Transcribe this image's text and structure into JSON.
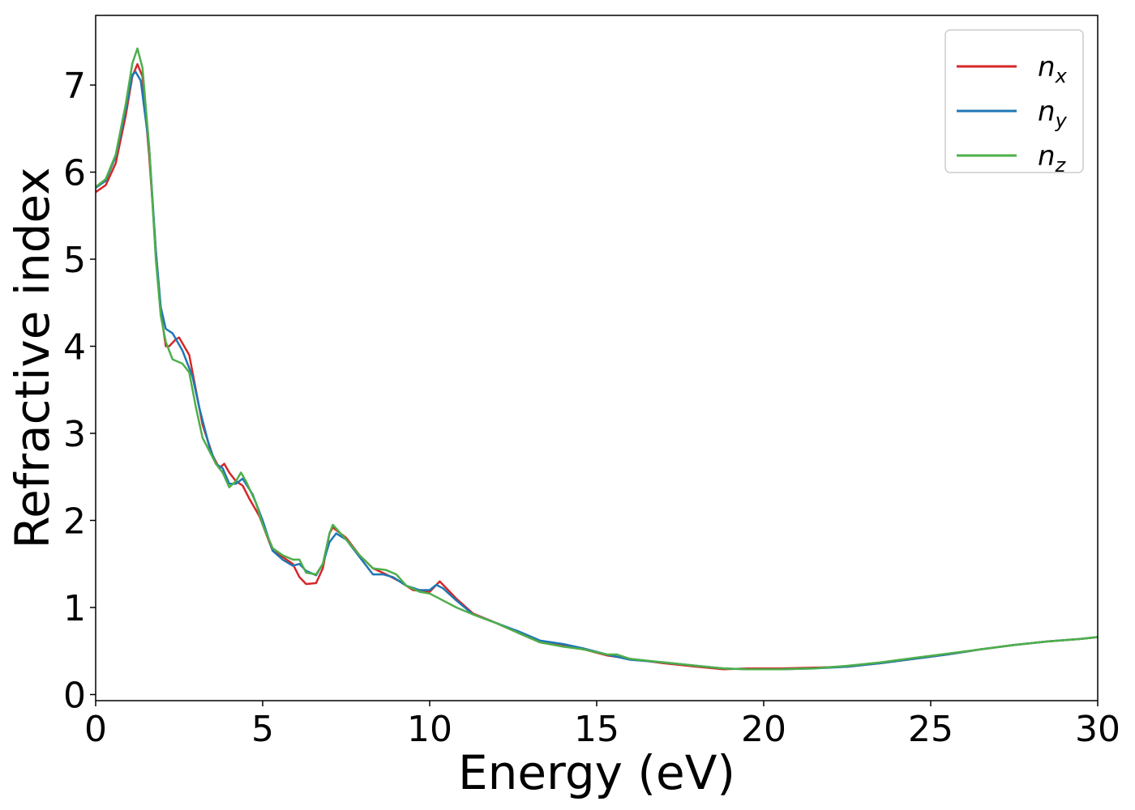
{
  "chart_data": {
    "type": "line",
    "title": "",
    "xlabel": "Energy (eV)",
    "ylabel": "Refractive index",
    "xlim": [
      0,
      30
    ],
    "ylim": [
      -0.07,
      7.8
    ],
    "xticks": [
      0,
      5,
      10,
      15,
      20,
      25,
      30
    ],
    "yticks": [
      0,
      1,
      2,
      3,
      4,
      5,
      6,
      7
    ],
    "grid": false,
    "legend_position": "top-right",
    "series": [
      {
        "name": "n",
        "subscript": "x",
        "color": "#d62728",
        "points": [
          [
            0,
            5.77
          ],
          [
            0.3,
            5.85
          ],
          [
            0.6,
            6.1
          ],
          [
            0.9,
            6.65
          ],
          [
            1.1,
            7.1
          ],
          [
            1.25,
            7.24
          ],
          [
            1.4,
            7.1
          ],
          [
            1.6,
            6.2
          ],
          [
            1.8,
            5.1
          ],
          [
            1.95,
            4.4
          ],
          [
            2.1,
            4.0
          ],
          [
            2.2,
            4.0
          ],
          [
            2.4,
            4.08
          ],
          [
            2.5,
            4.1
          ],
          [
            2.8,
            3.9
          ],
          [
            3.0,
            3.5
          ],
          [
            3.2,
            3.1
          ],
          [
            3.5,
            2.75
          ],
          [
            3.7,
            2.6
          ],
          [
            3.85,
            2.65
          ],
          [
            4.0,
            2.55
          ],
          [
            4.2,
            2.45
          ],
          [
            4.4,
            2.4
          ],
          [
            4.6,
            2.25
          ],
          [
            4.9,
            2.05
          ],
          [
            5.1,
            1.85
          ],
          [
            5.3,
            1.65
          ],
          [
            5.6,
            1.58
          ],
          [
            5.9,
            1.5
          ],
          [
            6.1,
            1.35
          ],
          [
            6.3,
            1.27
          ],
          [
            6.6,
            1.28
          ],
          [
            6.8,
            1.45
          ],
          [
            7.0,
            1.85
          ],
          [
            7.1,
            1.92
          ],
          [
            7.5,
            1.8
          ],
          [
            7.9,
            1.6
          ],
          [
            8.3,
            1.45
          ],
          [
            8.7,
            1.38
          ],
          [
            9.1,
            1.3
          ],
          [
            9.5,
            1.2
          ],
          [
            10.0,
            1.18
          ],
          [
            10.3,
            1.3
          ],
          [
            10.5,
            1.22
          ],
          [
            10.8,
            1.1
          ],
          [
            11.3,
            0.93
          ],
          [
            12.0,
            0.82
          ],
          [
            12.7,
            0.7
          ],
          [
            13.3,
            0.6
          ],
          [
            14.0,
            0.56
          ],
          [
            14.6,
            0.52
          ],
          [
            15.3,
            0.45
          ],
          [
            16.0,
            0.41
          ],
          [
            17.0,
            0.36
          ],
          [
            18.0,
            0.32
          ],
          [
            18.8,
            0.29
          ],
          [
            19.5,
            0.3
          ],
          [
            20.5,
            0.3
          ],
          [
            21.5,
            0.31
          ],
          [
            22.5,
            0.32
          ],
          [
            23.5,
            0.36
          ],
          [
            24.5,
            0.41
          ],
          [
            25.5,
            0.46
          ],
          [
            26.5,
            0.52
          ],
          [
            27.5,
            0.57
          ],
          [
            28.5,
            0.61
          ],
          [
            29.5,
            0.64
          ],
          [
            30,
            0.66
          ]
        ]
      },
      {
        "name": "n",
        "subscript": "y",
        "color": "#1f77b4",
        "points": [
          [
            0,
            5.82
          ],
          [
            0.3,
            5.9
          ],
          [
            0.6,
            6.18
          ],
          [
            0.9,
            6.72
          ],
          [
            1.1,
            7.12
          ],
          [
            1.2,
            7.15
          ],
          [
            1.35,
            7.05
          ],
          [
            1.6,
            6.3
          ],
          [
            1.8,
            5.1
          ],
          [
            1.95,
            4.45
          ],
          [
            2.1,
            4.2
          ],
          [
            2.3,
            4.15
          ],
          [
            2.6,
            3.95
          ],
          [
            2.9,
            3.65
          ],
          [
            3.1,
            3.3
          ],
          [
            3.4,
            2.85
          ],
          [
            3.6,
            2.65
          ],
          [
            3.8,
            2.6
          ],
          [
            4.0,
            2.42
          ],
          [
            4.2,
            2.42
          ],
          [
            4.4,
            2.48
          ],
          [
            4.7,
            2.3
          ],
          [
            5.0,
            2.0
          ],
          [
            5.3,
            1.65
          ],
          [
            5.6,
            1.55
          ],
          [
            5.9,
            1.48
          ],
          [
            6.1,
            1.5
          ],
          [
            6.3,
            1.42
          ],
          [
            6.6,
            1.37
          ],
          [
            6.8,
            1.5
          ],
          [
            7.0,
            1.75
          ],
          [
            7.2,
            1.85
          ],
          [
            7.5,
            1.78
          ],
          [
            7.9,
            1.58
          ],
          [
            8.3,
            1.38
          ],
          [
            8.6,
            1.38
          ],
          [
            8.9,
            1.35
          ],
          [
            9.3,
            1.25
          ],
          [
            9.7,
            1.2
          ],
          [
            10.0,
            1.2
          ],
          [
            10.2,
            1.26
          ],
          [
            10.4,
            1.22
          ],
          [
            10.8,
            1.08
          ],
          [
            11.3,
            0.92
          ],
          [
            12.0,
            0.82
          ],
          [
            12.7,
            0.72
          ],
          [
            13.3,
            0.62
          ],
          [
            14.0,
            0.58
          ],
          [
            14.6,
            0.53
          ],
          [
            15.3,
            0.46
          ],
          [
            16.0,
            0.4
          ],
          [
            17.0,
            0.37
          ],
          [
            18.0,
            0.33
          ],
          [
            18.8,
            0.3
          ],
          [
            19.5,
            0.29
          ],
          [
            20.5,
            0.29
          ],
          [
            21.5,
            0.3
          ],
          [
            22.5,
            0.32
          ],
          [
            23.5,
            0.36
          ],
          [
            24.5,
            0.41
          ],
          [
            25.5,
            0.46
          ],
          [
            26.5,
            0.52
          ],
          [
            27.5,
            0.57
          ],
          [
            28.5,
            0.61
          ],
          [
            29.5,
            0.64
          ],
          [
            30,
            0.66
          ]
        ]
      },
      {
        "name": "n",
        "subscript": "z",
        "color": "#4daf4a",
        "points": [
          [
            0,
            5.83
          ],
          [
            0.3,
            5.92
          ],
          [
            0.6,
            6.2
          ],
          [
            0.9,
            6.78
          ],
          [
            1.1,
            7.25
          ],
          [
            1.25,
            7.42
          ],
          [
            1.4,
            7.2
          ],
          [
            1.6,
            6.3
          ],
          [
            1.8,
            5.0
          ],
          [
            1.95,
            4.35
          ],
          [
            2.1,
            4.05
          ],
          [
            2.3,
            3.85
          ],
          [
            2.6,
            3.8
          ],
          [
            2.8,
            3.7
          ],
          [
            3.0,
            3.3
          ],
          [
            3.2,
            2.95
          ],
          [
            3.4,
            2.8
          ],
          [
            3.6,
            2.65
          ],
          [
            3.8,
            2.55
          ],
          [
            4.0,
            2.38
          ],
          [
            4.2,
            2.45
          ],
          [
            4.35,
            2.55
          ],
          [
            4.5,
            2.45
          ],
          [
            4.8,
            2.2
          ],
          [
            5.0,
            1.95
          ],
          [
            5.3,
            1.68
          ],
          [
            5.6,
            1.6
          ],
          [
            5.9,
            1.55
          ],
          [
            6.1,
            1.55
          ],
          [
            6.3,
            1.4
          ],
          [
            6.6,
            1.38
          ],
          [
            6.8,
            1.5
          ],
          [
            7.0,
            1.85
          ],
          [
            7.1,
            1.95
          ],
          [
            7.5,
            1.78
          ],
          [
            7.9,
            1.6
          ],
          [
            8.3,
            1.45
          ],
          [
            8.7,
            1.43
          ],
          [
            9.0,
            1.38
          ],
          [
            9.3,
            1.25
          ],
          [
            9.7,
            1.18
          ],
          [
            10.0,
            1.16
          ],
          [
            10.3,
            1.1
          ],
          [
            10.8,
            1.0
          ],
          [
            11.3,
            0.92
          ],
          [
            12.0,
            0.82
          ],
          [
            12.7,
            0.7
          ],
          [
            13.3,
            0.6
          ],
          [
            14.0,
            0.55
          ],
          [
            14.6,
            0.52
          ],
          [
            15.3,
            0.46
          ],
          [
            15.6,
            0.46
          ],
          [
            16.0,
            0.41
          ],
          [
            17.0,
            0.37
          ],
          [
            18.0,
            0.33
          ],
          [
            18.8,
            0.3
          ],
          [
            19.5,
            0.29
          ],
          [
            20.5,
            0.29
          ],
          [
            21.5,
            0.3
          ],
          [
            22.5,
            0.33
          ],
          [
            23.5,
            0.37
          ],
          [
            24.5,
            0.42
          ],
          [
            25.5,
            0.47
          ],
          [
            26.5,
            0.52
          ],
          [
            27.5,
            0.57
          ],
          [
            28.5,
            0.61
          ],
          [
            29.5,
            0.64
          ],
          [
            30,
            0.66
          ]
        ]
      }
    ]
  }
}
